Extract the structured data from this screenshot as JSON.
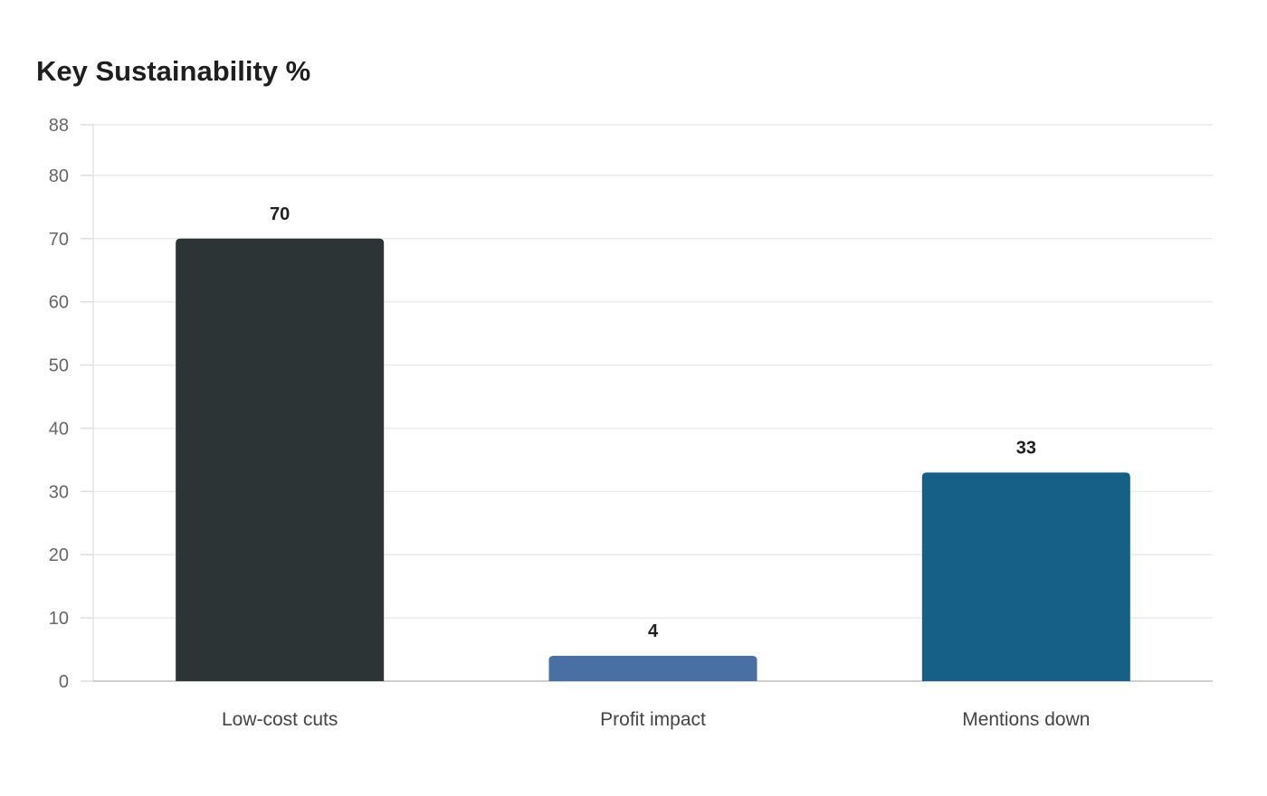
{
  "chart_data": {
    "type": "bar",
    "title": "Key Sustainability %",
    "xlabel": "",
    "ylabel": "",
    "categories": [
      "Low-cost cuts",
      "Profit impact",
      "Mentions down"
    ],
    "values": [
      70,
      4,
      33
    ],
    "colors": [
      "#2d3436",
      "#4a6fa5",
      "#166088"
    ],
    "ylim": [
      0,
      88
    ],
    "yticks": [
      0,
      10,
      20,
      30,
      40,
      50,
      60,
      70,
      80,
      88
    ],
    "grid": true,
    "legend": "none"
  }
}
